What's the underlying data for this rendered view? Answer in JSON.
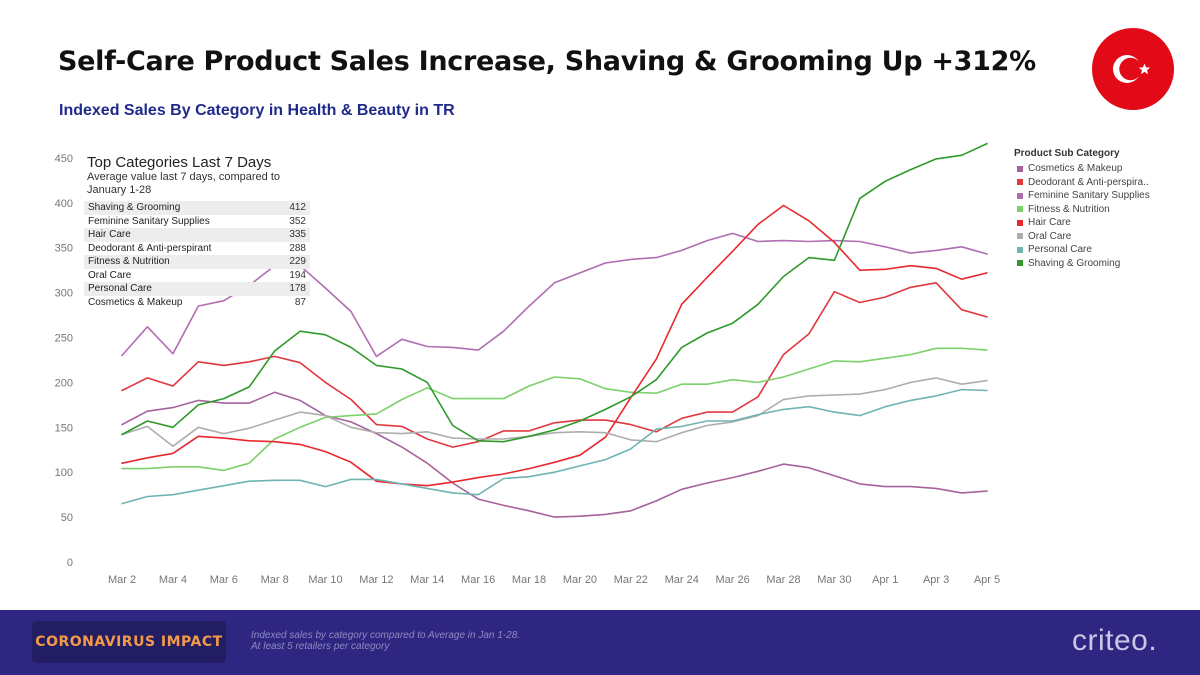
{
  "header": {
    "title": "Self-Care Product Sales Increase, Shaving & Grooming Up +312%",
    "subtitle": "Indexed Sales By Category in Health & Beauty in TR",
    "flag": {
      "name": "turkey-flag",
      "color": "#e30a17"
    }
  },
  "inset": {
    "title": "Top Categories Last 7 Days",
    "subtitle": "Average value last 7 days, compared to January 1-28",
    "rows": [
      {
        "label": "Shaving & Grooming",
        "value": "412"
      },
      {
        "label": "Feminine Sanitary Supplies",
        "value": "352"
      },
      {
        "label": "Hair Care",
        "value": "335"
      },
      {
        "label": "Deodorant & Anti-perspirant",
        "value": "288"
      },
      {
        "label": "Fitness & Nutrition",
        "value": "229"
      },
      {
        "label": "Oral Care",
        "value": "194"
      },
      {
        "label": "Personal Care",
        "value": "178"
      },
      {
        "label": "Cosmetics & Makeup",
        "value": "87"
      }
    ]
  },
  "legend": {
    "title": "Product Sub Category",
    "items": [
      {
        "label": "Cosmetics & Makeup",
        "color": "#a7629a"
      },
      {
        "label": "Deodorant & Anti-perspira..",
        "color": "#e0383f"
      },
      {
        "label": "Feminine Sanitary Supplies",
        "color": "#b06db2"
      },
      {
        "label": "Fitness & Nutrition",
        "color": "#7cd16c"
      },
      {
        "label": "Hair Care",
        "color": "#e8282c"
      },
      {
        "label": "Oral Care",
        "color": "#adadad"
      },
      {
        "label": "Personal Care",
        "color": "#6fb3b3"
      },
      {
        "label": "Shaving & Grooming",
        "color": "#2f9a2b"
      }
    ]
  },
  "chart_data": {
    "type": "line",
    "title": "Indexed Sales By Category in Health & Beauty in TR",
    "xlabel": "",
    "ylabel": "",
    "ylim": [
      0,
      470
    ],
    "yticks": [
      0,
      50,
      100,
      150,
      200,
      250,
      300,
      350,
      400,
      450
    ],
    "x_tick_labels": [
      "Mar 2",
      "Mar 4",
      "Mar 6",
      "Mar 8",
      "Mar 10",
      "Mar 12",
      "Mar 14",
      "Mar 16",
      "Mar 18",
      "Mar 20",
      "Mar 22",
      "Mar 24",
      "Mar 26",
      "Mar 28",
      "Mar 30",
      "Apr 1",
      "Apr 3",
      "Apr 5"
    ],
    "x_tick_index": [
      0,
      2,
      4,
      6,
      8,
      10,
      12,
      14,
      16,
      18,
      20,
      22,
      24,
      26,
      28,
      30,
      32,
      34
    ],
    "x": [
      "Mar 2",
      "Mar 3",
      "Mar 4",
      "Mar 5",
      "Mar 6",
      "Mar 7",
      "Mar 8",
      "Mar 9",
      "Mar 10",
      "Mar 11",
      "Mar 12",
      "Mar 13",
      "Mar 14",
      "Mar 15",
      "Mar 16",
      "Mar 17",
      "Mar 18",
      "Mar 19",
      "Mar 20",
      "Mar 21",
      "Mar 22",
      "Mar 23",
      "Mar 24",
      "Mar 25",
      "Mar 26",
      "Mar 27",
      "Mar 28",
      "Mar 29",
      "Mar 30",
      "Mar 31",
      "Apr 1",
      "Apr 2",
      "Apr 3",
      "Apr 4",
      "Apr 5"
    ],
    "series": [
      {
        "name": "Cosmetics & Makeup",
        "color": "#a7629a",
        "values": [
          153,
          168,
          172,
          180,
          177,
          177,
          189,
          180,
          163,
          156,
          143,
          128,
          110,
          88,
          70,
          63,
          57,
          50,
          51,
          53,
          57,
          68,
          81,
          88,
          94,
          101,
          109,
          105,
          96,
          87,
          84,
          84,
          82,
          77,
          79
        ]
      },
      {
        "name": "Deodorant & Anti-perspirant",
        "color": "#e0383f",
        "values": [
          191,
          205,
          196,
          223,
          219,
          223,
          229,
          222,
          200,
          181,
          153,
          151,
          137,
          128,
          134,
          146,
          146,
          155,
          158,
          158,
          153,
          145,
          160,
          167,
          167,
          184,
          231,
          254,
          301,
          289,
          295,
          306,
          311,
          281,
          273
        ]
      },
      {
        "name": "Feminine Sanitary Supplies",
        "color": "#b06db2",
        "values": [
          230,
          262,
          232,
          285,
          291,
          308,
          330,
          330,
          305,
          279,
          229,
          248,
          240,
          239,
          236,
          257,
          285,
          311,
          322,
          333,
          337,
          339,
          347,
          358,
          366,
          357,
          358,
          357,
          358,
          357,
          351,
          344,
          347,
          351,
          343
        ]
      },
      {
        "name": "Fitness & Nutrition",
        "color": "#7cd16c",
        "values": [
          104,
          104,
          106,
          106,
          102,
          110,
          137,
          150,
          161,
          163,
          165,
          181,
          194,
          182,
          182,
          182,
          196,
          206,
          204,
          193,
          189,
          188,
          198,
          198,
          203,
          200,
          206,
          215,
          224,
          223,
          227,
          231,
          238,
          238,
          236
        ]
      },
      {
        "name": "Hair Care",
        "color": "#e8282c",
        "values": [
          110,
          116,
          121,
          140,
          138,
          135,
          134,
          131,
          123,
          111,
          90,
          87,
          85,
          89,
          94,
          98,
          104,
          111,
          119,
          139,
          183,
          226,
          287,
          317,
          346,
          376,
          397,
          380,
          356,
          325,
          326,
          330,
          327,
          315,
          322
        ]
      },
      {
        "name": "Oral Care",
        "color": "#adadad",
        "values": [
          142,
          151,
          129,
          150,
          143,
          149,
          158,
          167,
          163,
          150,
          144,
          143,
          145,
          138,
          137,
          137,
          140,
          144,
          145,
          144,
          136,
          134,
          144,
          152,
          156,
          163,
          181,
          185,
          186,
          187,
          192,
          200,
          205,
          198,
          202
        ]
      },
      {
        "name": "Personal Care",
        "color": "#6fb3b3",
        "values": [
          65,
          73,
          75,
          80,
          85,
          90,
          91,
          91,
          84,
          92,
          92,
          87,
          82,
          77,
          75,
          93,
          95,
          100,
          107,
          114,
          126,
          148,
          151,
          157,
          157,
          164,
          170,
          173,
          167,
          163,
          173,
          180,
          185,
          192,
          191
        ]
      },
      {
        "name": "Shaving & Grooming",
        "color": "#2f9a2b",
        "values": [
          142,
          157,
          150,
          175,
          182,
          195,
          235,
          257,
          253,
          239,
          219,
          215,
          200,
          152,
          135,
          134,
          140,
          147,
          157,
          170,
          184,
          203,
          239,
          255,
          266,
          287,
          318,
          339,
          336,
          405,
          424,
          437,
          449,
          453,
          466
        ]
      }
    ]
  },
  "footer": {
    "badge": "CORONAVIRUS IMPACT",
    "note_line1": "Indexed sales by category compared to Average in Jan 1-28.",
    "note_line2": "At least 5 retailers per category",
    "logo": "criteo."
  }
}
